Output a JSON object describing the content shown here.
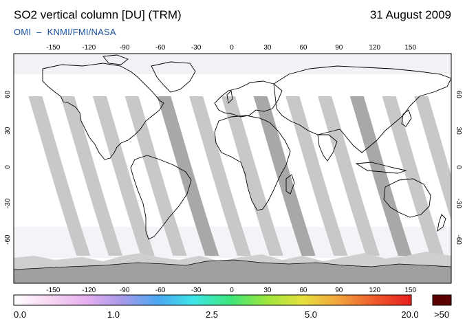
{
  "header": {
    "title": "SO2 vertical column [DU] (TRM)",
    "date": "31 August 2009",
    "source_instrument": "OMI",
    "source_separator": "–",
    "source_agencies": "KNMI/FMI/NASA"
  },
  "map": {
    "projection": "equirectangular",
    "longitude_ticks": [
      "-150",
      "-120",
      "-90",
      "-60",
      "-30",
      "0",
      "30",
      "60",
      "90",
      "120",
      "150"
    ],
    "latitude_ticks": [
      "60",
      "30",
      "0",
      "-30",
      "-60"
    ],
    "swath_gap_color": "#c8c8c8",
    "swath_overlap_color": "#a8a8a8",
    "antarctica_color": "#a0a0a0"
  },
  "colorbar": {
    "labels": [
      "0.0",
      "1.0",
      "2.5",
      "5.0",
      "20.0"
    ],
    "overflow_label": ">50",
    "overflow_color": "#5a0000",
    "gradient_stops": [
      "#ffffff",
      "#f6d6f2",
      "#e6b0ee",
      "#a89ae8",
      "#4aa8f2",
      "#3ee6e6",
      "#3ee67a",
      "#9ee63e",
      "#e6e03e",
      "#f2a23e",
      "#ee5a2a",
      "#e61e1e"
    ]
  }
}
